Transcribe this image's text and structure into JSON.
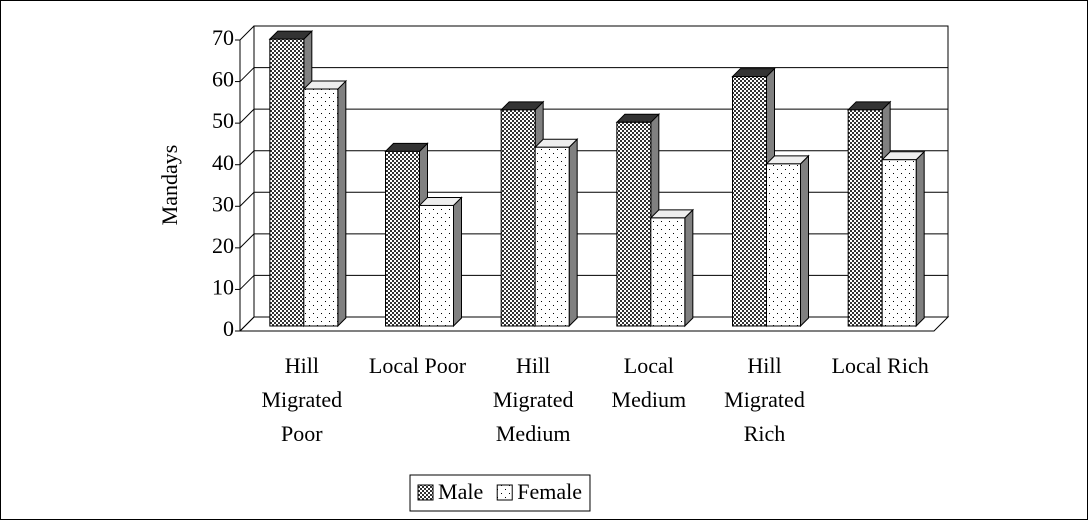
{
  "chart_data": {
    "type": "bar",
    "y_label": "Mandays",
    "categories": [
      "Hill Migrated Poor",
      "Local Poor",
      "Hill Migrated Medium",
      "Local Medium",
      "Hill Migrated Rich",
      "Local Rich"
    ],
    "series": [
      {
        "name": "Male",
        "color": "#333333",
        "values": [
          69,
          42,
          52,
          49,
          60,
          52
        ]
      },
      {
        "name": "Female",
        "color": "#ffffff",
        "values": [
          57,
          29,
          43,
          26,
          39,
          40
        ]
      }
    ],
    "ylim": [
      0,
      70
    ],
    "yticks": [
      0,
      10,
      20,
      30,
      40,
      50,
      60,
      70
    ],
    "grid": true,
    "legend": "bottom"
  }
}
